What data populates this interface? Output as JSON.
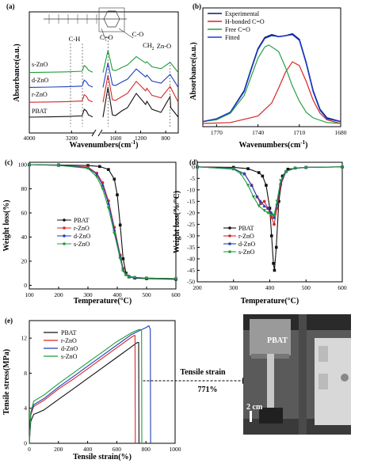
{
  "colors": {
    "pbat": "#111111",
    "r_zno": "#d92626",
    "d_zno": "#1f3fbf",
    "s_zno": "#1e9e3a",
    "fit_blue": "#1a3fd9",
    "free_green": "#27a045"
  },
  "panel_a": {
    "label": "(a)",
    "ylabel": "Absorbance(a.u.)",
    "xlabel": "Wavenumbers(cm",
    "xlabel_sup": "-1",
    "xlabel_end": ")",
    "ticks": [
      "4000",
      "3200",
      "1600",
      "1200",
      "800"
    ],
    "series_labels": [
      "s-ZnO",
      "d-ZnO",
      "r-ZnO",
      "PBAT"
    ],
    "annotations": [
      "C-H",
      "C=O",
      "C-O",
      "CH",
      "2",
      "Zn-O"
    ]
  },
  "panel_b": {
    "label": "(b)",
    "ylabel": "Absorbance(a.u.)",
    "xlabel": "Wavenumbers(cm",
    "xlabel_sup": "-1",
    "xlabel_end": ")",
    "ticks": [
      "1770",
      "1740",
      "1710",
      "1680"
    ],
    "legend": [
      "Experimental",
      "H-bonded C=O",
      "Free C=O",
      "Fitted"
    ]
  },
  "panel_c": {
    "label": "(c)",
    "ylabel": "Weight loss(%)",
    "xlabel": "Temperature(°C)",
    "xticks": [
      "100",
      "200",
      "300",
      "400",
      "500",
      "600"
    ],
    "yticks": [
      "0",
      "20",
      "40",
      "60",
      "80",
      "100"
    ],
    "legend": [
      "PBAT",
      "r-ZnO",
      "d-ZnO",
      "s-ZnO"
    ]
  },
  "panel_d": {
    "label": "(d)",
    "ylabel": "Weight loss(%/°C)",
    "xlabel": "Temperature(°C)",
    "xticks": [
      "200",
      "300",
      "400",
      "500",
      "600"
    ],
    "yticks": [
      "0",
      "-5",
      "-10",
      "-15",
      "-20",
      "-25",
      "-30",
      "-35",
      "-40",
      "-45",
      "-50"
    ],
    "legend": [
      "PBAT",
      "r-ZnO",
      "d-ZnO",
      "s-ZnO"
    ]
  },
  "panel_e": {
    "label": "(e)",
    "ylabel": "Tensile stress(MPa)",
    "xlabel": "Tensile strain(%)",
    "xticks": [
      "0",
      "200",
      "400",
      "600",
      "800",
      "1000"
    ],
    "yticks": [
      "0",
      "4",
      "8",
      "12"
    ],
    "legend": [
      "PBAT",
      "r-ZnO",
      "d-ZnO",
      "s-ZnO"
    ],
    "callout_title": "Tensile strain",
    "callout_value": "771%",
    "photo_label": "PBAT",
    "photo_scale": "2 cm"
  },
  "chart_data": [
    {
      "type": "line",
      "title": "",
      "xlabel": "Wavenumbers(cm-1)",
      "ylabel": "Absorbance(a.u.)",
      "x_axis_broken": true,
      "xlim": [
        4000,
        600
      ],
      "series": [
        {
          "name": "PBAT",
          "x": [
            4000,
            3600,
            3300,
            3000,
            2960,
            2920,
            2880,
            2800,
            1800,
            1720,
            1650,
            1600,
            1500,
            1410,
            1270,
            1120,
            1100,
            1020,
            875,
            730,
            720,
            600
          ],
          "y": [
            0.05,
            0.06,
            0.07,
            0.09,
            0.3,
            0.25,
            0.12,
            0.06,
            0.05,
            1.0,
            0.12,
            0.1,
            0.25,
            0.35,
            0.8,
            0.45,
            0.55,
            0.3,
            0.2,
            0.7,
            0.35,
            0.05
          ]
        },
        {
          "name": "r-ZnO",
          "x": [
            4000,
            3600,
            3300,
            3000,
            2960,
            2920,
            2880,
            2800,
            1800,
            1720,
            1650,
            1600,
            1500,
            1410,
            1270,
            1120,
            1100,
            1020,
            875,
            730,
            600
          ],
          "y": [
            0.12,
            0.13,
            0.14,
            0.16,
            0.36,
            0.31,
            0.19,
            0.13,
            0.12,
            0.98,
            0.2,
            0.18,
            0.3,
            0.4,
            0.78,
            0.48,
            0.56,
            0.34,
            0.26,
            0.62,
            0.12
          ]
        },
        {
          "name": "d-ZnO",
          "x": [
            4000,
            3600,
            3300,
            3000,
            2960,
            2920,
            2880,
            2800,
            1800,
            1720,
            1650,
            1600,
            1500,
            1410,
            1270,
            1120,
            1100,
            1020,
            875,
            730,
            600
          ],
          "y": [
            0.19,
            0.2,
            0.21,
            0.23,
            0.42,
            0.37,
            0.26,
            0.2,
            0.19,
            0.97,
            0.27,
            0.25,
            0.36,
            0.45,
            0.77,
            0.52,
            0.58,
            0.39,
            0.32,
            0.6,
            0.19
          ]
        },
        {
          "name": "s-ZnO",
          "x": [
            4000,
            3600,
            3300,
            3000,
            2960,
            2920,
            2880,
            2800,
            1800,
            1720,
            1650,
            1600,
            1500,
            1410,
            1270,
            1120,
            1100,
            1020,
            875,
            730,
            600
          ],
          "y": [
            0.26,
            0.27,
            0.28,
            0.3,
            0.48,
            0.43,
            0.33,
            0.27,
            0.26,
            0.96,
            0.34,
            0.32,
            0.42,
            0.5,
            0.76,
            0.56,
            0.6,
            0.44,
            0.38,
            0.58,
            0.26
          ]
        }
      ]
    },
    {
      "type": "line",
      "title": "",
      "xlabel": "Wavenumbers(cm-1)",
      "ylabel": "Absorbance(a.u.)",
      "xlim": [
        1780,
        1680
      ],
      "series": [
        {
          "name": "Experimental",
          "x": [
            1780,
            1770,
            1760,
            1750,
            1745,
            1740,
            1735,
            1730,
            1725,
            1720,
            1715,
            1710,
            1705,
            1700,
            1695,
            1690,
            1680
          ],
          "y": [
            0.02,
            0.05,
            0.12,
            0.35,
            0.58,
            0.8,
            0.92,
            0.95,
            0.93,
            0.94,
            0.96,
            0.9,
            0.65,
            0.35,
            0.15,
            0.06,
            0.02
          ]
        },
        {
          "name": "H-bonded C=O",
          "x": [
            1780,
            1760,
            1740,
            1730,
            1725,
            1720,
            1715,
            1710,
            1705,
            1700,
            1695,
            1690,
            1680
          ],
          "y": [
            0,
            0.01,
            0.08,
            0.22,
            0.38,
            0.55,
            0.66,
            0.62,
            0.45,
            0.25,
            0.11,
            0.04,
            0
          ]
        },
        {
          "name": "Free C=O",
          "x": [
            1780,
            1770,
            1760,
            1750,
            1745,
            1740,
            1735,
            1732,
            1725,
            1720,
            1715,
            1710,
            1705,
            1700,
            1690,
            1680
          ],
          "y": [
            0.02,
            0.04,
            0.11,
            0.3,
            0.5,
            0.7,
            0.82,
            0.84,
            0.77,
            0.6,
            0.4,
            0.24,
            0.12,
            0.06,
            0.01,
            0
          ]
        },
        {
          "name": "Fitted",
          "x": [
            1780,
            1770,
            1760,
            1750,
            1745,
            1740,
            1735,
            1730,
            1725,
            1720,
            1715,
            1710,
            1705,
            1700,
            1695,
            1690,
            1680
          ],
          "y": [
            0.02,
            0.05,
            0.12,
            0.34,
            0.57,
            0.79,
            0.91,
            0.94,
            0.93,
            0.94,
            0.95,
            0.89,
            0.64,
            0.34,
            0.14,
            0.05,
            0.02
          ]
        }
      ]
    },
    {
      "type": "line",
      "title": "",
      "xlabel": "Temperature(°C)",
      "ylabel": "Weight loss(%)",
      "xlim": [
        100,
        600
      ],
      "ylim": [
        0,
        100
      ],
      "series": [
        {
          "name": "PBAT",
          "x": [
            100,
            200,
            300,
            340,
            370,
            390,
            400,
            410,
            420,
            430,
            440,
            460,
            500,
            600
          ],
          "y": [
            100,
            99.8,
            99.3,
            98.5,
            96,
            88,
            75,
            50,
            22,
            10,
            7,
            6,
            5.5,
            5
          ]
        },
        {
          "name": "r-ZnO",
          "x": [
            100,
            200,
            300,
            330,
            350,
            370,
            390,
            410,
            420,
            430,
            440,
            460,
            500,
            600
          ],
          "y": [
            100,
            99.5,
            98,
            93,
            85,
            70,
            48,
            25,
            14,
            9,
            7.5,
            6.5,
            6,
            5.5
          ]
        },
        {
          "name": "d-ZnO",
          "x": [
            100,
            200,
            300,
            330,
            350,
            370,
            390,
            410,
            420,
            430,
            440,
            460,
            500,
            600
          ],
          "y": [
            100,
            99.5,
            97.5,
            92,
            83,
            68,
            46,
            24,
            13,
            9,
            7.5,
            6.5,
            6,
            5.5
          ]
        },
        {
          "name": "s-ZnO",
          "x": [
            100,
            200,
            300,
            330,
            350,
            370,
            390,
            410,
            420,
            430,
            440,
            460,
            500,
            600
          ],
          "y": [
            100,
            99.4,
            97,
            90,
            80,
            64,
            43,
            22,
            12,
            8.5,
            7,
            6.5,
            6,
            5.5
          ]
        }
      ]
    },
    {
      "type": "line",
      "title": "",
      "xlabel": "Temperature(°C)",
      "ylabel": "Weight loss(%/°C)",
      "xlim": [
        200,
        600
      ],
      "ylim": [
        -50,
        2
      ],
      "series": [
        {
          "name": "PBAT",
          "x": [
            200,
            300,
            340,
            370,
            380,
            390,
            400,
            405,
            410,
            413,
            418,
            425,
            435,
            450,
            500,
            600
          ],
          "y": [
            0,
            -0.2,
            -0.8,
            -2.5,
            -4,
            -8,
            -18,
            -30,
            -42,
            -45,
            -35,
            -15,
            -4,
            -1,
            -0.2,
            0
          ]
        },
        {
          "name": "r-ZnO",
          "x": [
            200,
            300,
            330,
            350,
            365,
            375,
            385,
            395,
            405,
            412,
            420,
            430,
            445,
            470,
            500,
            600
          ],
          "y": [
            0,
            -0.8,
            -3,
            -8,
            -13,
            -16,
            -15,
            -18,
            -22,
            -25,
            -18,
            -8,
            -2,
            -0.5,
            -0.2,
            0
          ]
        },
        {
          "name": "d-ZnO",
          "x": [
            200,
            300,
            330,
            350,
            365,
            375,
            385,
            395,
            405,
            412,
            420,
            430,
            445,
            470,
            500,
            600
          ],
          "y": [
            0,
            -0.8,
            -3,
            -8,
            -13,
            -15,
            -17,
            -18,
            -20,
            -22,
            -16,
            -7,
            -2,
            -0.5,
            -0.2,
            0
          ]
        },
        {
          "name": "s-ZnO",
          "x": [
            200,
            300,
            320,
            340,
            355,
            370,
            385,
            395,
            405,
            412,
            420,
            430,
            445,
            470,
            500,
            600
          ],
          "y": [
            0,
            -1,
            -3,
            -8,
            -13,
            -17,
            -19,
            -20,
            -21,
            -21,
            -15,
            -6,
            -2,
            -0.5,
            -0.2,
            0
          ]
        }
      ]
    },
    {
      "type": "line",
      "title": "",
      "xlabel": "Tensile strain(%)",
      "ylabel": "Tensile stress(MPa)",
      "xlim": [
        0,
        1000
      ],
      "ylim": [
        0,
        14
      ],
      "series": [
        {
          "name": "PBAT",
          "x": [
            0,
            10,
            30,
            60,
            100,
            200,
            300,
            400,
            500,
            600,
            700,
            740,
            750,
            752
          ],
          "y": [
            0,
            2.5,
            3.3,
            3.5,
            3.8,
            5.0,
            6.2,
            7.4,
            8.6,
            9.8,
            11.0,
            11.5,
            11.5,
            0
          ]
        },
        {
          "name": "r-ZnO",
          "x": [
            0,
            10,
            30,
            60,
            100,
            200,
            300,
            400,
            500,
            600,
            700,
            720,
            725,
            727
          ],
          "y": [
            0,
            3.2,
            4.2,
            4.5,
            4.9,
            6.2,
            7.3,
            8.5,
            9.7,
            10.9,
            12.1,
            12.3,
            12.3,
            0
          ]
        },
        {
          "name": "d-ZnO",
          "x": [
            0,
            10,
            30,
            60,
            100,
            200,
            300,
            400,
            500,
            600,
            700,
            760,
            800,
            820,
            830,
            832
          ],
          "y": [
            0,
            3.3,
            4.4,
            4.7,
            5.1,
            6.4,
            7.6,
            8.8,
            10.0,
            11.2,
            12.4,
            12.9,
            13.2,
            13.4,
            13.0,
            0
          ]
        },
        {
          "name": "s-ZnO",
          "x": [
            0,
            10,
            30,
            60,
            100,
            200,
            300,
            400,
            500,
            600,
            700,
            740,
            760,
            770,
            772
          ],
          "y": [
            0,
            3.5,
            4.8,
            5.1,
            5.5,
            6.8,
            8.0,
            9.2,
            10.4,
            11.6,
            12.6,
            12.9,
            13.0,
            12.8,
            0
          ]
        }
      ]
    }
  ]
}
